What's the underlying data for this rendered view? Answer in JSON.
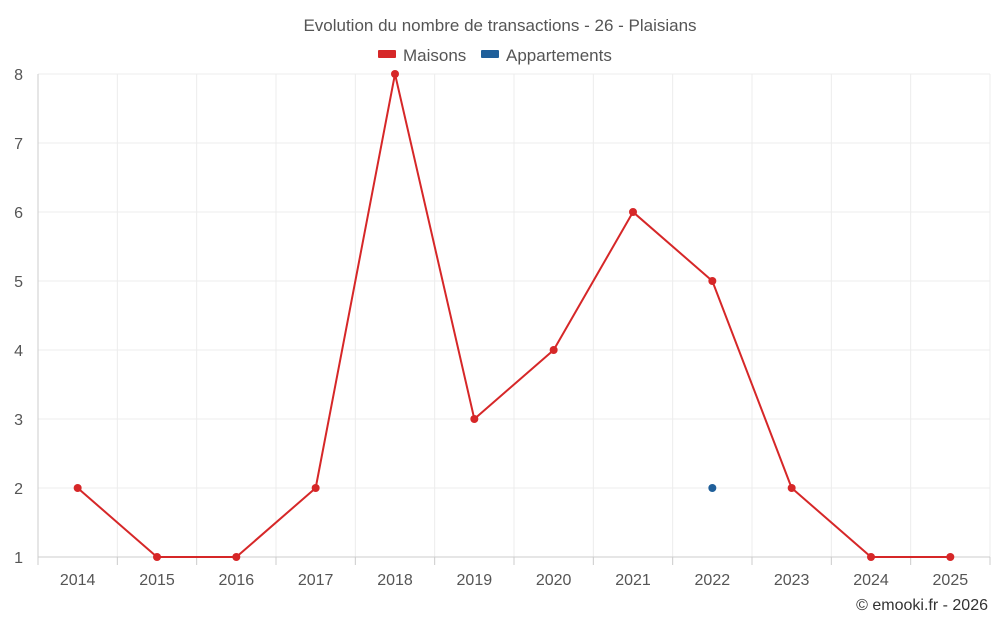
{
  "chart_data": {
    "type": "line",
    "title": "Evolution du nombre de transactions - 26 - Plaisians",
    "categories": [
      "2014",
      "2015",
      "2016",
      "2017",
      "2018",
      "2019",
      "2020",
      "2021",
      "2022",
      "2023",
      "2024",
      "2025"
    ],
    "ylim": [
      1,
      8
    ],
    "yticks": [
      1,
      2,
      3,
      4,
      5,
      6,
      7,
      8
    ],
    "series": [
      {
        "name": "Maisons",
        "color": "#d62728",
        "values": [
          2,
          1,
          1,
          2,
          8,
          3,
          4,
          6,
          5,
          2,
          1,
          1
        ]
      },
      {
        "name": "Appartements",
        "color": "#1f5f9a",
        "values": [
          null,
          null,
          null,
          null,
          null,
          null,
          null,
          null,
          2,
          null,
          null,
          null
        ]
      }
    ],
    "legend_position": "top-center",
    "grid": true
  },
  "credit": "© emooki.fr - 2026"
}
